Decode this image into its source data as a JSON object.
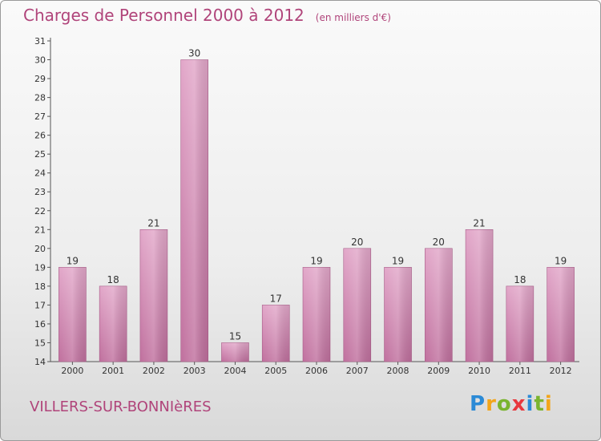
{
  "header": {
    "title": "Charges de Personnel 2000 à 2012",
    "subtitle": "(en milliers d'€)"
  },
  "footer": {
    "commune": "VILLERS-SUR-BONNIèRES",
    "logo": {
      "letters": [
        "P",
        "r",
        "o",
        "x",
        "i",
        "t",
        "i"
      ],
      "colors": [
        "#2b8ad6",
        "#f2a51a",
        "#7ab42f",
        "#e8383d",
        "#2b8ad6",
        "#7ab42f",
        "#f2a51a"
      ]
    }
  },
  "colors": {
    "bar": "#c0709e",
    "bar_light": "#e2a7c9",
    "accent": "#b0447a"
  },
  "chart_data": {
    "type": "bar",
    "categories": [
      "2000",
      "2001",
      "2002",
      "2003",
      "2004",
      "2005",
      "2006",
      "2007",
      "2008",
      "2009",
      "2010",
      "2011",
      "2012"
    ],
    "values": [
      19,
      18,
      21,
      30,
      15,
      17,
      19,
      20,
      19,
      20,
      21,
      18,
      19
    ],
    "ylim": [
      14,
      31
    ],
    "yticks": [
      14,
      15,
      16,
      17,
      18,
      19,
      20,
      21,
      22,
      23,
      24,
      25,
      26,
      27,
      28,
      29,
      30,
      31
    ],
    "grid": false
  }
}
